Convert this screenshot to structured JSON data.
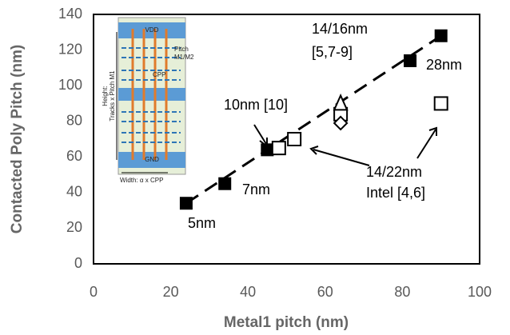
{
  "chart_data": {
    "type": "scatter",
    "x_label": "Metal1 pitch (nm)",
    "y_label": "Contacted Poly Pitch (nm)",
    "xlim": [
      0,
      100
    ],
    "xticks": [
      0,
      20,
      40,
      60,
      80,
      100
    ],
    "ylim": [
      0,
      140
    ],
    "yticks": [
      0,
      20,
      40,
      60,
      80,
      100,
      120,
      140
    ],
    "grid": false,
    "series": [
      {
        "marker": "dashed-line",
        "color": "#000000",
        "x": [
          24,
          90
        ],
        "values": [
          34,
          128
        ]
      },
      {
        "marker": "square",
        "color": "#000000",
        "x": [
          24,
          34,
          45,
          82,
          90
        ],
        "values": [
          34,
          45,
          64,
          114,
          128
        ]
      },
      {
        "marker": "square-open",
        "color": "#000000",
        "x": [
          48,
          52,
          64,
          90
        ],
        "values": [
          65,
          70,
          84,
          90
        ]
      },
      {
        "marker": "triangle-open",
        "color": "#000000",
        "x": [
          64
        ],
        "values": [
          90
        ]
      },
      {
        "marker": "diamond-open",
        "color": "#000000",
        "x": [
          64
        ],
        "values": [
          79
        ]
      }
    ],
    "annotations": [
      "14/16nm",
      "[5,7-9]",
      "28nm",
      "10nm [10]",
      "7nm",
      "5nm",
      "14/22nm",
      "Intel [4,6]"
    ],
    "inset": {
      "top_rail": "VDD",
      "bottom_rail": "GND",
      "pitch": "Pitch",
      "pitch_layers": "M1/M2",
      "cpp": "CPP",
      "height": "Height:",
      "height_formula": "Tracks x Pitch M1",
      "width": "Width: α x CPP"
    }
  }
}
